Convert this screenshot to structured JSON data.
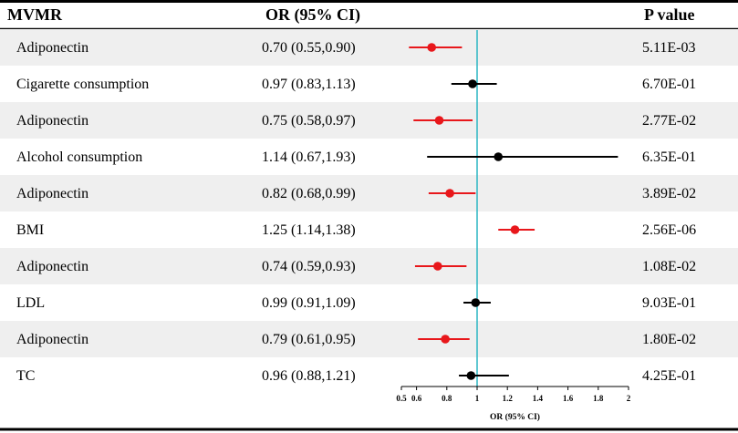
{
  "headers": {
    "exposure": "MVMR",
    "or": "OR (95% CI)",
    "p": "P value"
  },
  "colors": {
    "significant": "#e8171b",
    "nonsignificant": "#000000",
    "reference_line": "#2bb5c4",
    "row_shade": "#efefef"
  },
  "chart_data": {
    "type": "forest",
    "xlabel": "OR (95% CI)",
    "xlim": [
      0.5,
      2
    ],
    "reference": 1,
    "tick_values": [
      0.5,
      0.6,
      0.8,
      1,
      1.2,
      1.4,
      1.6,
      1.8,
      2
    ],
    "tick_labels": [
      "0.5",
      "0.6",
      "0.8",
      "1",
      "1.2",
      "1.4",
      "1.6",
      "1.8",
      "2"
    ],
    "rows": [
      {
        "label": "Adiponectin",
        "or": 0.7,
        "lo": 0.55,
        "hi": 0.9,
        "or_text": "0.70 (0.55,0.90)",
        "p": "5.11E-03",
        "significant": true
      },
      {
        "label": "Cigarette consumption",
        "or": 0.97,
        "lo": 0.83,
        "hi": 1.13,
        "or_text": "0.97 (0.83,1.13)",
        "p": "6.70E-01",
        "significant": false
      },
      {
        "label": "Adiponectin",
        "or": 0.75,
        "lo": 0.58,
        "hi": 0.97,
        "or_text": "0.75 (0.58,0.97)",
        "p": "2.77E-02",
        "significant": true
      },
      {
        "label": "Alcohol consumption",
        "or": 1.14,
        "lo": 0.67,
        "hi": 1.93,
        "or_text": "1.14 (0.67,1.93)",
        "p": "6.35E-01",
        "significant": false
      },
      {
        "label": "Adiponectin",
        "or": 0.82,
        "lo": 0.68,
        "hi": 0.99,
        "or_text": "0.82 (0.68,0.99)",
        "p": "3.89E-02",
        "significant": true
      },
      {
        "label": "BMI",
        "or": 1.25,
        "lo": 1.14,
        "hi": 1.38,
        "or_text": "1.25 (1.14,1.38)",
        "p": "2.56E-06",
        "significant": true
      },
      {
        "label": "Adiponectin",
        "or": 0.74,
        "lo": 0.59,
        "hi": 0.93,
        "or_text": "0.74 (0.59,0.93)",
        "p": "1.08E-02",
        "significant": true
      },
      {
        "label": "LDL",
        "or": 0.99,
        "lo": 0.91,
        "hi": 1.09,
        "or_text": "0.99 (0.91,1.09)",
        "p": "9.03E-01",
        "significant": false
      },
      {
        "label": "Adiponectin",
        "or": 0.79,
        "lo": 0.61,
        "hi": 0.95,
        "or_text": "0.79 (0.61,0.95)",
        "p": "1.80E-02",
        "significant": true
      },
      {
        "label": "TC",
        "or": 0.96,
        "lo": 0.88,
        "hi": 1.21,
        "or_text": "0.96 (0.88,1.21)",
        "p": "4.25E-01",
        "significant": false
      }
    ]
  }
}
